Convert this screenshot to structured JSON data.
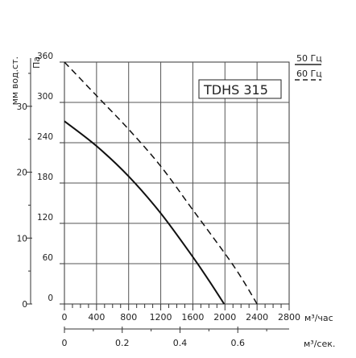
{
  "chart_data": {
    "type": "line",
    "title": "TDHS 315",
    "xlabel": "м³/час",
    "x2label": "м³/сек.",
    "ylabel": "Па",
    "y2label": "мм вод.ст.",
    "xlim": [
      0,
      2800
    ],
    "ylim": [
      0,
      360
    ],
    "x_ticks": [
      "0",
      "400",
      "800",
      "1200",
      "1600",
      "2000",
      "2400",
      "2800"
    ],
    "y_ticks": [
      "0",
      "60",
      "120",
      "180",
      "240",
      "300",
      "360"
    ],
    "x2_ticks": [
      "0",
      "0.2",
      "0.4",
      "0.6"
    ],
    "y2_ticks": [
      "0",
      "10",
      "20",
      "30"
    ],
    "grid": true,
    "legend_position": "top-right",
    "series": [
      {
        "name": "50 Гц",
        "style": "solid",
        "x": [
          0,
          400,
          800,
          1200,
          1600,
          1800,
          1990
        ],
        "y": [
          272,
          235,
          190,
          135,
          70,
          35,
          0
        ]
      },
      {
        "name": "60 Гц",
        "style": "dashed",
        "x": [
          0,
          400,
          800,
          1200,
          1600,
          2000,
          2200,
          2400
        ],
        "y": [
          360,
          310,
          260,
          205,
          140,
          75,
          40,
          0
        ]
      }
    ]
  }
}
